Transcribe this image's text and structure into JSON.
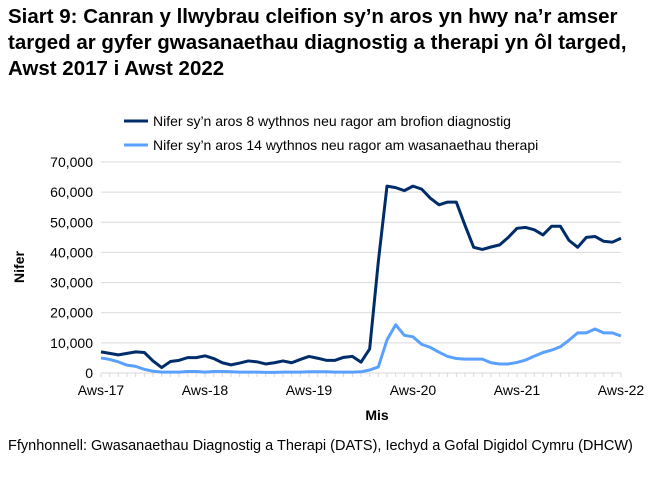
{
  "title": "Siart 9: Canran y llwybrau cleifion sy’n aros yn hwy na’r amser targed ar gyfer gwasanaethau diagnostig a therapi yn ôl targed, Awst 2017 i Awst 2022",
  "source": "Ffynhonnell: Gwasanaethau Diagnostig a Therapi (DATS), Iechyd a Gofal Digidol Cymru (DHCW)",
  "chart_data": {
    "type": "line",
    "xlabel": "Mis",
    "ylabel": "Nifer",
    "ylim": [
      0,
      70000
    ],
    "yticks": [
      "0",
      "10,000",
      "20,000",
      "30,000",
      "40,000",
      "50,000",
      "60,000",
      "70,000"
    ],
    "xtick_labels": [
      "Aws-17",
      "Aws-18",
      "Aws-19",
      "Aws-20",
      "Aws-21",
      "Aws-22"
    ],
    "x_start": "2017-08",
    "x_end": "2022-08",
    "grid": "horizontal",
    "legend": "top",
    "series": [
      {
        "name": "Nifer sy’n aros 8 wythnos neu ragor am brofion diagnostig",
        "color": "#002d6a",
        "values": [
          7000,
          6500,
          6000,
          6500,
          7000,
          6800,
          4000,
          1800,
          3800,
          4200,
          5100,
          5100,
          5700,
          4800,
          3400,
          2700,
          3300,
          4000,
          3700,
          3000,
          3400,
          4000,
          3400,
          4500,
          5500,
          4900,
          4200,
          4200,
          5200,
          5500,
          3600,
          8000,
          37000,
          62000,
          61500,
          60500,
          62000,
          61000,
          58000,
          55800,
          56700,
          56700,
          49000,
          41700,
          41000,
          41800,
          42500,
          45000,
          48000,
          48300,
          47500,
          45800,
          48700,
          48700,
          44000,
          41700,
          45000,
          45300,
          43700,
          43400,
          44700
        ]
      },
      {
        "name": "Nifer sy’n aros 14 wythnos neu ragor am wasanaethau therapi",
        "color": "#5aa0ff",
        "values": [
          5000,
          4500,
          3700,
          2600,
          2200,
          1200,
          600,
          300,
          300,
          300,
          500,
          500,
          300,
          500,
          500,
          400,
          300,
          300,
          300,
          200,
          200,
          300,
          300,
          300,
          400,
          400,
          400,
          300,
          300,
          300,
          400,
          1000,
          2000,
          11000,
          16000,
          12500,
          12000,
          9500,
          8500,
          6900,
          5500,
          4800,
          4600,
          4600,
          4600,
          3400,
          3000,
          3000,
          3500,
          4300,
          5600,
          6800,
          7600,
          8700,
          10900,
          13300,
          13300,
          14600,
          13300,
          13300,
          12300
        ]
      }
    ]
  }
}
